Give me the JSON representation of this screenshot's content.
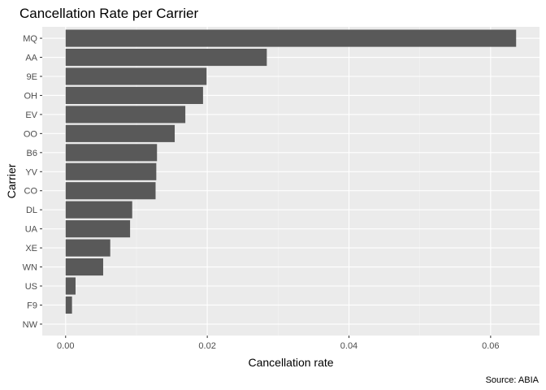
{
  "chart_data": {
    "type": "bar",
    "orientation": "horizontal",
    "title": "Cancellation Rate per Carrier",
    "xlabel": "Cancellation rate",
    "ylabel": "Carrier",
    "caption": "Source: ABIA",
    "categories": [
      "MQ",
      "AA",
      "9E",
      "OH",
      "EV",
      "OO",
      "B6",
      "YV",
      "CO",
      "DL",
      "UA",
      "XE",
      "WN",
      "US",
      "F9",
      "NW"
    ],
    "values": [
      0.0636,
      0.0284,
      0.0199,
      0.0194,
      0.0169,
      0.0154,
      0.0129,
      0.0128,
      0.0127,
      0.0094,
      0.0091,
      0.0063,
      0.0053,
      0.0014,
      0.0009,
      0.0
    ],
    "xlim": [
      -0.0033,
      0.0669
    ],
    "xticks": [
      0.0,
      0.02,
      0.04,
      0.06
    ],
    "xtick_labels": [
      "0.00",
      "0.02",
      "0.04",
      "0.06"
    ],
    "grid": true,
    "colors": {
      "bar": "#595959",
      "panel": "#ebebeb",
      "grid_major": "#ffffff",
      "grid_minor": "#f5f5f5"
    }
  }
}
